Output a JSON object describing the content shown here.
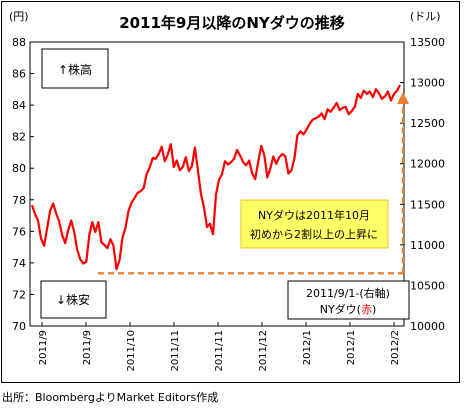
{
  "chart_data": {
    "type": "line",
    "title": "2011年9月以降のNYダウの推移",
    "y_left_unit": "(円)",
    "y_right_unit": "(ドル)",
    "x_tick_labels": [
      "2011/9",
      "2011/9",
      "2011/10",
      "2011/11",
      "2011/11",
      "2011/12",
      "2012/1",
      "2012/1",
      "2012/2"
    ],
    "y_left_ticks": [
      70,
      72,
      74,
      76,
      78,
      80,
      82,
      84,
      86,
      88
    ],
    "y_right_ticks": [
      10000,
      10500,
      11000,
      11500,
      12000,
      12500,
      13000,
      13500
    ],
    "ylim_left": [
      70,
      88
    ],
    "ylim_right": [
      10000,
      13500
    ],
    "grid": false,
    "series": [
      {
        "name": "NYダウ",
        "color": "#ff0000",
        "axis": "right",
        "values": [
          11490,
          11380,
          11300,
          11080,
          10990,
          11200,
          11420,
          11510,
          11390,
          11290,
          11120,
          11020,
          11180,
          11300,
          11160,
          10940,
          10820,
          10770,
          10790,
          11120,
          11280,
          11160,
          11280,
          11030,
          11000,
          10960,
          11070,
          10990,
          10700,
          10810,
          11090,
          11210,
          11420,
          11520,
          11580,
          11640,
          11660,
          11700,
          11870,
          11950,
          12070,
          12060,
          12120,
          12210,
          12030,
          12110,
          12240,
          11960,
          12040,
          11920,
          11960,
          12080,
          11910,
          11970,
          12200,
          11920,
          11630,
          11470,
          11220,
          11260,
          11130,
          11620,
          11800,
          11870,
          12030,
          11990,
          12020,
          12060,
          12170,
          12100,
          12020,
          11980,
          12040,
          11880,
          11810,
          12020,
          12220,
          12110,
          11830,
          11940,
          12090,
          12000,
          12080,
          12120,
          12090,
          11880,
          11920,
          12060,
          12350,
          12400,
          12360,
          12420,
          12490,
          12540,
          12560,
          12580,
          12620,
          12550,
          12670,
          12640,
          12690,
          12750,
          12660,
          12690,
          12700,
          12610,
          12650,
          12700,
          12860,
          12810,
          12900,
          12860,
          12890,
          12820,
          12920,
          12870,
          12800,
          12830,
          12890,
          12780,
          12860,
          12900,
          12970
        ]
      }
    ],
    "baseline": {
      "label_line1": "2011/9/1-(右軸)",
      "label_line2_prefix": "NYダウ(",
      "label_line2_colored": "赤",
      "label_line2_suffix": ")",
      "value": 10650,
      "color": "#ed7d31"
    },
    "annotations": {
      "up_label": "↑株高",
      "down_label": "↓株安",
      "callout_line1": "NYダウは2011年10月",
      "callout_line2": "初めから2割以上の上昇に",
      "callout_bg": "#ffff66"
    }
  },
  "source": "出所：BloombergよりMarket Editors作成"
}
